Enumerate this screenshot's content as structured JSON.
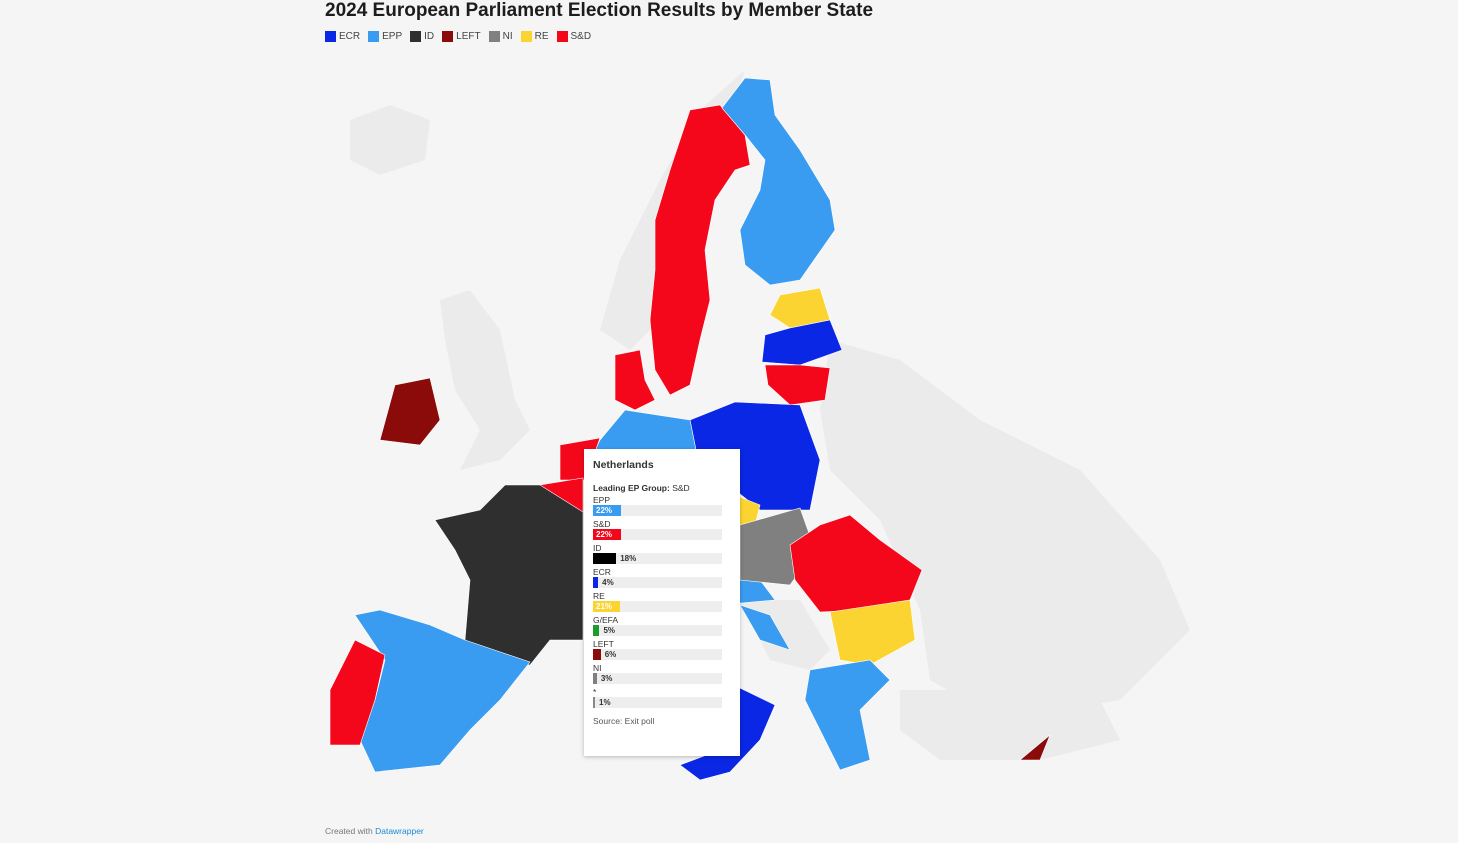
{
  "title": "2024 European Parliament Election Results by Member State",
  "legend": [
    {
      "label": "ECR",
      "color": "#0a27e5"
    },
    {
      "label": "EPP",
      "color": "#3a9cf0"
    },
    {
      "label": "ID",
      "color": "#2f2f2f"
    },
    {
      "label": "LEFT",
      "color": "#8b0a0a"
    },
    {
      "label": "NI",
      "color": "#808080"
    },
    {
      "label": "RE",
      "color": "#fcd431"
    },
    {
      "label": "S&D",
      "color": "#f5071b"
    }
  ],
  "countries": {
    "Sweden": "S&D",
    "Finland": "EPP",
    "Estonia": "RE",
    "Latvia": "ECR",
    "Lithuania": "S&D",
    "Denmark": "S&D",
    "Poland": "ECR",
    "Germany": "EPP",
    "Ireland": "LEFT",
    "Netherlands": "S&D",
    "Belgium": "S&D",
    "France": "ID",
    "Spain": "EPP",
    "Portugal": "S&D",
    "Italy": "ECR",
    "Hungary": "NI",
    "Slovakia": "NI",
    "Czechia": "RE",
    "Austria": "EPP",
    "Romania": "S&D",
    "Bulgaria": "RE",
    "Greece": "EPP",
    "Cyprus": "LEFT",
    "Croatia": "EPP"
  },
  "tooltip": {
    "country": "Netherlands",
    "lead_label": "Leading EP Group:",
    "lead_value": "S&D",
    "rows": [
      {
        "label": "EPP",
        "value": 22,
        "text": "22%",
        "color": "#3a9cf0"
      },
      {
        "label": "S&D",
        "value": 22,
        "text": "22%",
        "color": "#f5071b"
      },
      {
        "label": "ID",
        "value": 18,
        "text": "18%",
        "color": "#000000"
      },
      {
        "label": "ECR",
        "value": 4,
        "text": "4%",
        "color": "#0a27e5"
      },
      {
        "label": "RE",
        "value": 21,
        "text": "21%",
        "color": "#fcd431"
      },
      {
        "label": "G/EFA",
        "value": 5,
        "text": "5%",
        "color": "#1f9a2c"
      },
      {
        "label": "LEFT",
        "value": 6,
        "text": "6%",
        "color": "#8b0a0a"
      },
      {
        "label": "NI",
        "value": 3,
        "text": "3%",
        "color": "#808080"
      },
      {
        "label": "*",
        "value": 1,
        "text": "1%",
        "color": "#888888"
      }
    ],
    "source": "Source: Exit poll"
  },
  "footer": {
    "prefix": "Created with",
    "link": "Datawrapper"
  }
}
